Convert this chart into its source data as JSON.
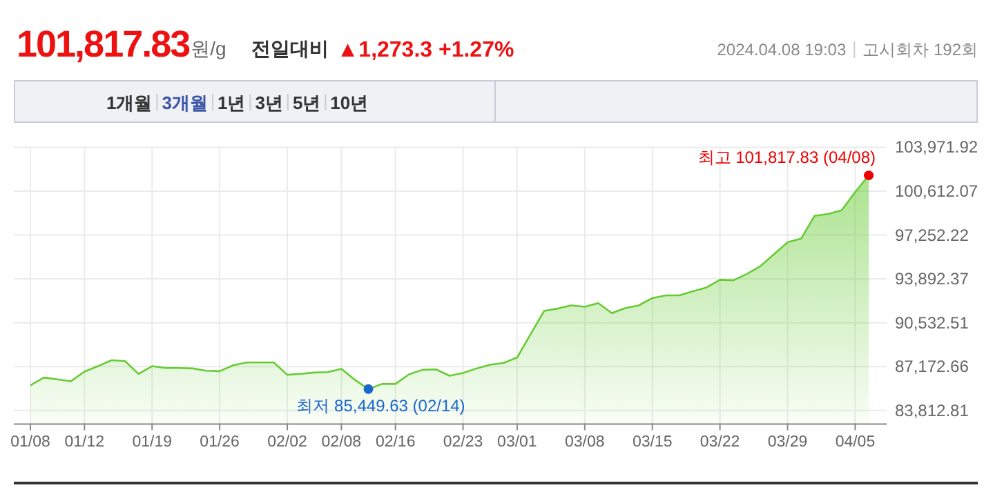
{
  "chart_data": {
    "type": "area",
    "title": "101,817.83원/g",
    "subtitle": "전일대비 ▲1,273.3 +1.27%",
    "categories": [
      "01/08",
      null,
      null,
      null,
      "01/12",
      null,
      null,
      null,
      null,
      "01/19",
      null,
      null,
      null,
      null,
      "01/26",
      null,
      null,
      null,
      null,
      "02/02",
      null,
      null,
      null,
      "02/08",
      null,
      null,
      null,
      "02/16",
      null,
      null,
      null,
      null,
      "02/23",
      null,
      null,
      null,
      "03/01",
      null,
      null,
      null,
      null,
      "03/08",
      null,
      null,
      null,
      null,
      "03/15",
      null,
      null,
      null,
      null,
      "03/22",
      null,
      null,
      null,
      null,
      "03/29",
      null,
      null,
      null,
      null,
      "04/05",
      null
    ],
    "series": [
      {
        "color": "#66cc33",
        "values": [
          85738,
          86333,
          86193,
          86053,
          86788,
          87208,
          87663,
          87593,
          86613,
          87208,
          87068,
          87068,
          87033,
          86858,
          86823,
          87278,
          87488,
          87488,
          87488,
          86543,
          86613,
          86718,
          86753,
          86998,
          86158,
          85449.63,
          85843,
          85843,
          86578,
          86928,
          86963,
          86473,
          86683,
          87033,
          87313,
          87453,
          87873,
          89658,
          91443,
          91618,
          91863,
          91758,
          92038,
          91268,
          91653,
          91863,
          92423,
          92633,
          92633,
          92948,
          93228,
          93823,
          93788,
          94278,
          94873,
          95783,
          96693,
          96973,
          98723,
          98863,
          99143,
          100543,
          101817.83
        ]
      },
      {
        "type": "scatter",
        "color": "#ee0000",
        "values": [
          null,
          null,
          null,
          null,
          null,
          null,
          null,
          null,
          null,
          null,
          null,
          null,
          null,
          null,
          null,
          null,
          null,
          null,
          null,
          null,
          null,
          null,
          null,
          null,
          null,
          null,
          null,
          null,
          null,
          null,
          null,
          null,
          null,
          null,
          null,
          null,
          null,
          null,
          null,
          null,
          null,
          null,
          null,
          null,
          null,
          null,
          null,
          null,
          null,
          null,
          null,
          null,
          null,
          null,
          null,
          null,
          null,
          null,
          null,
          null,
          null,
          null,
          101817.83
        ]
      },
      {
        "type": "scatter",
        "color": "#1a66cc",
        "values": [
          null,
          null,
          null,
          null,
          null,
          null,
          null,
          null,
          null,
          null,
          null,
          null,
          null,
          null,
          null,
          null,
          null,
          null,
          null,
          null,
          null,
          null,
          null,
          null,
          null,
          85449.63,
          null,
          null,
          null,
          null,
          null,
          null,
          null,
          null,
          null,
          null,
          null,
          null,
          null,
          null,
          null,
          null,
          null,
          null,
          null,
          null,
          null,
          null,
          null,
          null,
          null,
          null,
          null,
          null,
          null,
          null,
          null,
          null,
          null,
          null,
          null,
          null,
          null
        ]
      }
    ],
    "ylim": [
      82830,
      103971.92
    ],
    "yticks": [
      {
        "value": 83812.81,
        "label": "83,812.81"
      },
      {
        "value": 87172.66,
        "label": "87,172.66"
      },
      {
        "value": 90532.51,
        "label": "90,532.51"
      },
      {
        "value": 93892.37,
        "label": "93,892.37"
      },
      {
        "value": 97252.22,
        "label": "97,252.22"
      },
      {
        "value": 100612.07,
        "label": "100,612.07"
      },
      {
        "value": 103971.92,
        "label": "103,971.92"
      }
    ],
    "grid": true,
    "annotations": [
      "최고 101,817.83 (04/08)",
      "최저 85,449.63 (02/14)",
      "2024.04.08 19:03",
      "고시회차 192회",
      "1개월",
      "3개월",
      "1년",
      "3년",
      "5년",
      "10년"
    ]
  }
}
